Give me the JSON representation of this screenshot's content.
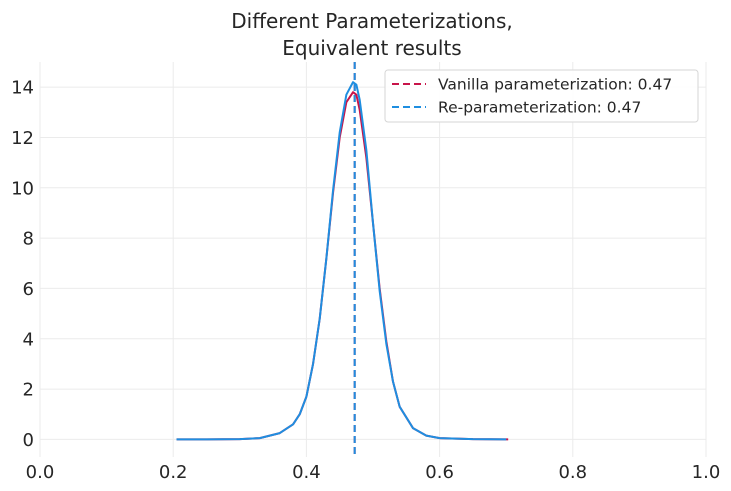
{
  "chart_data": {
    "type": "line",
    "title_lines": [
      "Different Parameterizations,",
      "Equivalent results"
    ],
    "xlabel": "",
    "ylabel": "",
    "xlim": [
      0.0,
      1.0
    ],
    "ylim": [
      -0.7,
      15.0
    ],
    "xticks": [
      0.0,
      0.2,
      0.4,
      0.6,
      0.8,
      1.0
    ],
    "xtick_labels": [
      "0.0",
      "0.2",
      "0.4",
      "0.6",
      "0.8",
      "1.0"
    ],
    "yticks": [
      0,
      2,
      4,
      6,
      8,
      10,
      12,
      14
    ],
    "ytick_labels": [
      "0",
      "2",
      "4",
      "6",
      "8",
      "10",
      "12",
      "14"
    ],
    "grid": true,
    "legend_position": "top-right",
    "series": [
      {
        "name": "Vanilla parameterization",
        "color": "#c8144a",
        "x": [
          0.205,
          0.25,
          0.3,
          0.33,
          0.36,
          0.38,
          0.39,
          0.4,
          0.41,
          0.42,
          0.43,
          0.44,
          0.45,
          0.46,
          0.47,
          0.475,
          0.48,
          0.49,
          0.5,
          0.51,
          0.52,
          0.53,
          0.54,
          0.56,
          0.58,
          0.6,
          0.65,
          0.703
        ],
        "y": [
          0.0,
          0.0,
          0.01,
          0.05,
          0.25,
          0.6,
          1.0,
          1.7,
          3.0,
          4.8,
          7.2,
          9.8,
          12.0,
          13.4,
          13.8,
          13.7,
          13.1,
          11.2,
          8.6,
          6.0,
          3.9,
          2.3,
          1.3,
          0.45,
          0.15,
          0.05,
          0.01,
          0.0
        ],
        "mean": 0.47
      },
      {
        "name": "Re-parameterization",
        "color": "#1f8ee0",
        "x": [
          0.205,
          0.25,
          0.3,
          0.33,
          0.36,
          0.38,
          0.39,
          0.4,
          0.41,
          0.42,
          0.43,
          0.44,
          0.45,
          0.46,
          0.47,
          0.475,
          0.48,
          0.49,
          0.5,
          0.51,
          0.52,
          0.53,
          0.54,
          0.56,
          0.58,
          0.6,
          0.65,
          0.7
        ],
        "y": [
          0.0,
          0.0,
          0.01,
          0.05,
          0.25,
          0.6,
          1.0,
          1.7,
          3.0,
          4.8,
          7.2,
          9.9,
          12.2,
          13.7,
          14.2,
          14.1,
          13.5,
          11.5,
          8.6,
          5.9,
          3.8,
          2.3,
          1.3,
          0.45,
          0.15,
          0.05,
          0.01,
          0.0
        ],
        "mean": 0.47
      }
    ],
    "vlines": [
      {
        "x": 0.4725,
        "color": "#c8144a",
        "style": "dashed"
      },
      {
        "x": 0.4725,
        "color": "#1f8ee0",
        "style": "dashed"
      }
    ],
    "legend": [
      {
        "label": "Vanilla parameterization: 0.47",
        "color": "#c8144a"
      },
      {
        "label": "Re-parameterization: 0.47",
        "color": "#1f8ee0"
      }
    ]
  }
}
